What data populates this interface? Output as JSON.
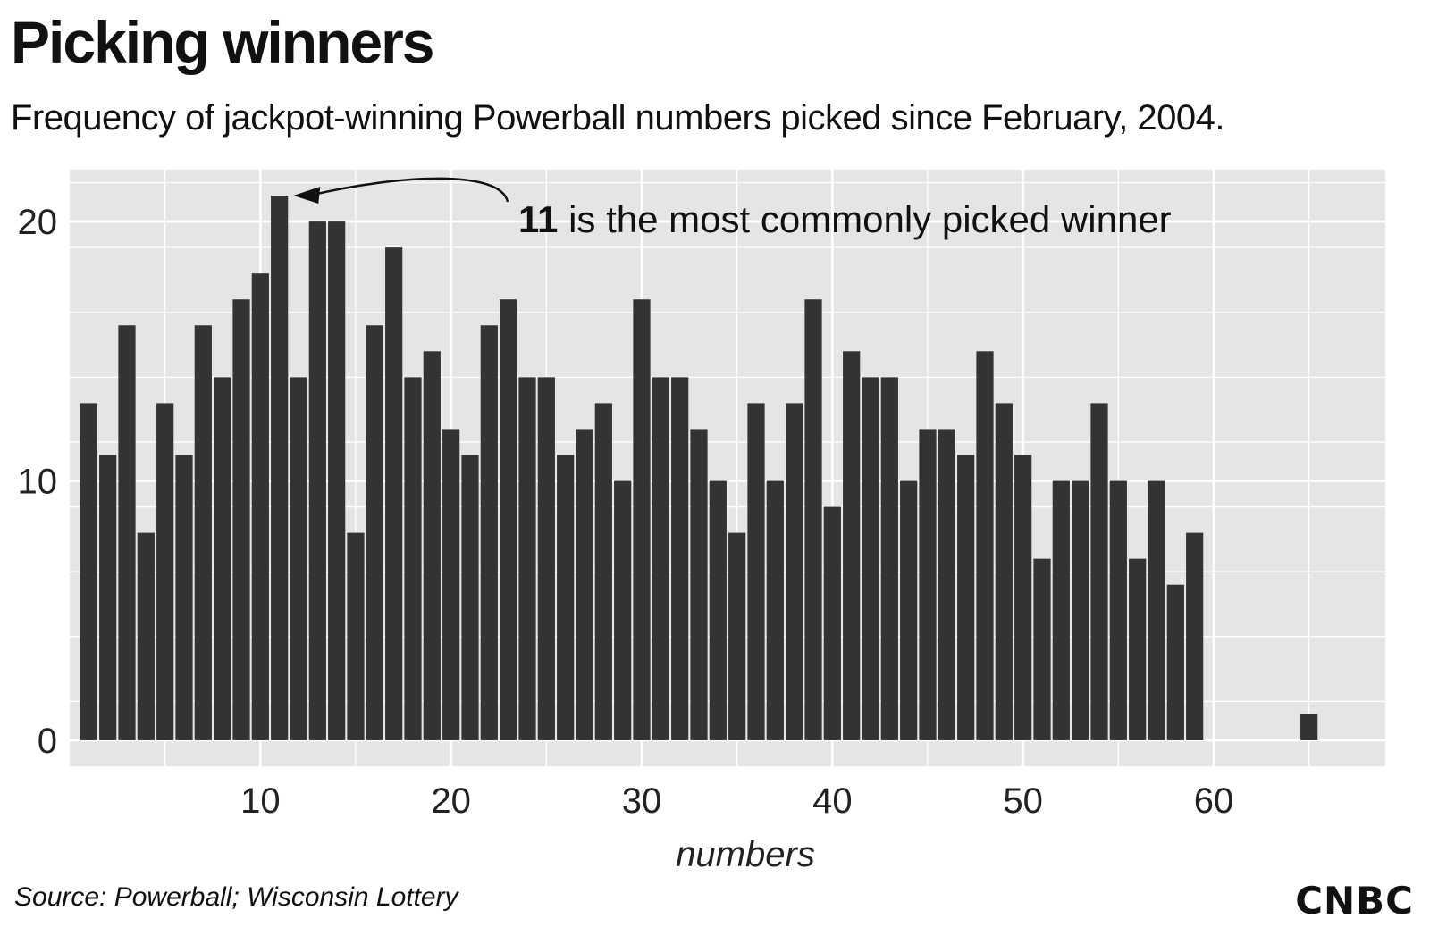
{
  "header": {
    "title": "Picking winners",
    "subtitle": "Frequency of jackpot-winning Powerball numbers picked since February, 2004."
  },
  "footer": {
    "source": "Source: Powerball; Wisconsin Lottery",
    "logo": "CNBC"
  },
  "annotation": {
    "bold": "11",
    "text": " is the most commonly picked winner",
    "points_to": 11
  },
  "colors": {
    "bar": "#333333",
    "panel": "#e5e5e5",
    "grid": "#ffffff"
  },
  "chart_data": {
    "type": "bar",
    "title": "Picking winners",
    "subtitle": "Frequency of jackpot-winning Powerball numbers picked since February, 2004.",
    "xlabel": "numbers",
    "ylabel": "",
    "xlim": [
      0,
      69
    ],
    "ylim": [
      -1,
      22
    ],
    "xticks": [
      10,
      20,
      30,
      40,
      50,
      60
    ],
    "yticks": [
      0,
      10,
      20
    ],
    "grid": true,
    "legend": "none",
    "x": [
      1,
      2,
      3,
      4,
      5,
      6,
      7,
      8,
      9,
      10,
      11,
      12,
      13,
      14,
      15,
      16,
      17,
      18,
      19,
      20,
      21,
      22,
      23,
      24,
      25,
      26,
      27,
      28,
      29,
      30,
      31,
      32,
      33,
      34,
      35,
      36,
      37,
      38,
      39,
      40,
      41,
      42,
      43,
      44,
      45,
      46,
      47,
      48,
      49,
      50,
      51,
      52,
      53,
      54,
      55,
      56,
      57,
      58,
      59,
      65
    ],
    "values": [
      13,
      11,
      16,
      8,
      13,
      11,
      16,
      14,
      17,
      18,
      21,
      14,
      20,
      20,
      8,
      16,
      19,
      14,
      15,
      12,
      11,
      16,
      17,
      14,
      14,
      11,
      12,
      13,
      10,
      17,
      14,
      14,
      12,
      10,
      8,
      13,
      10,
      13,
      17,
      9,
      15,
      14,
      14,
      10,
      12,
      12,
      11,
      15,
      13,
      11,
      7,
      10,
      10,
      13,
      10,
      7,
      10,
      6,
      8,
      1
    ]
  }
}
